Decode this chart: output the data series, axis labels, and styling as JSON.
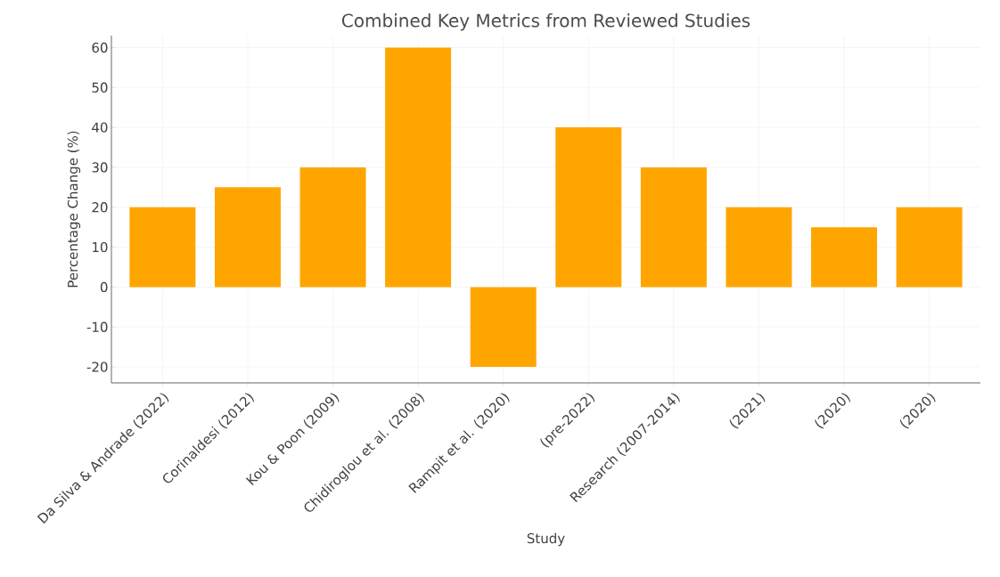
{
  "chart_data": {
    "type": "bar",
    "title": "Combined Key Metrics from Reviewed Studies",
    "xlabel": "Study",
    "ylabel": "Percentage Change (%)",
    "categories": [
      "Da Silva & Andrade (2022)",
      "Corinaldesi (2012)",
      "Kou & Poon (2009)",
      "Chidiroglou et al. (2008)",
      "Rampit et al. (2020)",
      "(pre-2022)",
      "Research (2007-2014)",
      "(2021)",
      "(2020)",
      "(2020)"
    ],
    "values": [
      20,
      25,
      30,
      60,
      -20,
      40,
      30,
      20,
      15,
      20
    ],
    "color": "#ffa500",
    "ylim": [
      -24,
      63
    ],
    "yticks": [
      -20,
      -10,
      0,
      10,
      20,
      30,
      40,
      50,
      60
    ],
    "grid": true
  }
}
